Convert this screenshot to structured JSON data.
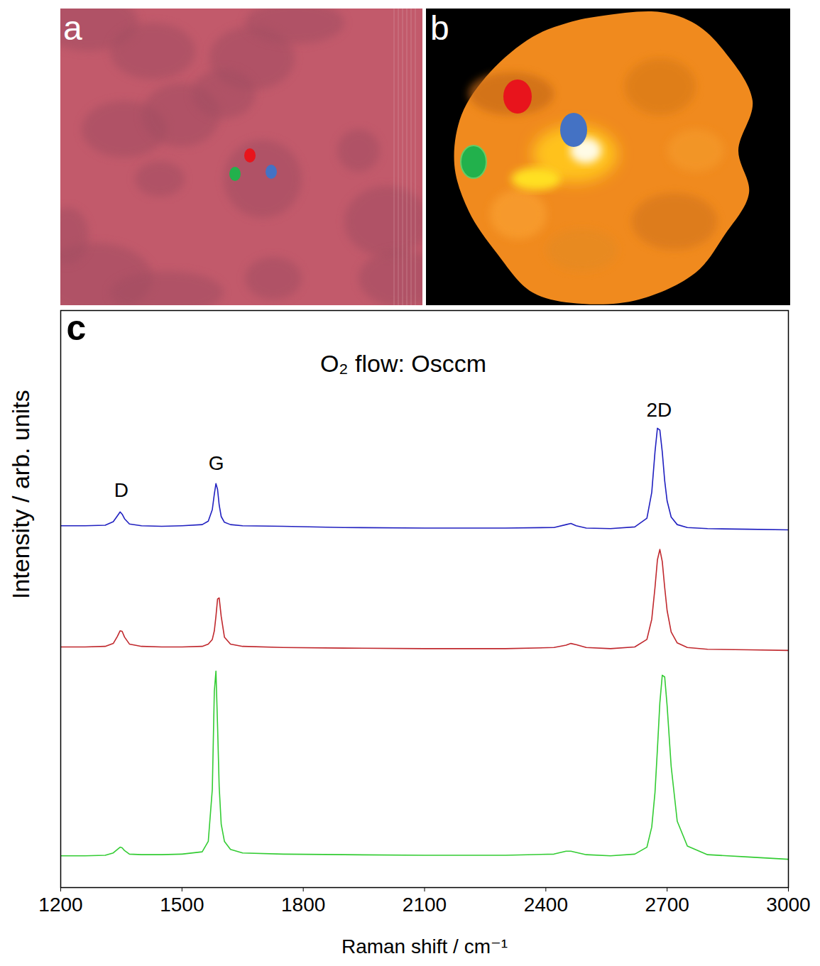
{
  "images": [
    {
      "panel": "a",
      "spots": [
        "#e8141c",
        "#22b14c",
        "#4472c4"
      ]
    },
    {
      "panel": "b",
      "spots": [
        "#e8141c",
        "#22b14c",
        "#4472c4"
      ]
    }
  ],
  "chart_data": {
    "type": "line",
    "panel": "c",
    "title": "O₂ flow: Osccm",
    "x_label": "Raman shift / cm⁻¹",
    "y_label": "Intensity / arb. units",
    "xlim": [
      1200,
      3000
    ],
    "xticks": [
      1200,
      1500,
      1800,
      2100,
      2400,
      2700,
      3000
    ],
    "ylim": [
      0,
      100
    ],
    "tick_labels": "x",
    "annotations": [
      {
        "text": "D",
        "x": 1350,
        "y": 68.8
      },
      {
        "text": "G",
        "x": 1585,
        "y": 73.5
      },
      {
        "text": "2D",
        "x": 2680,
        "y": 82.7
      }
    ],
    "x": [
      1200,
      1260,
      1310,
      1330,
      1340,
      1347,
      1352,
      1358,
      1370,
      1400,
      1450,
      1500,
      1550,
      1565,
      1575,
      1580,
      1584,
      1588,
      1592,
      1597,
      1605,
      1620,
      1650,
      1750,
      1900,
      2100,
      2300,
      2420,
      2450,
      2462,
      2475,
      2500,
      2560,
      2620,
      2650,
      2662,
      2670,
      2676,
      2682,
      2688,
      2694,
      2700,
      2710,
      2725,
      2750,
      2800,
      2900,
      3000
    ],
    "series": [
      {
        "color": "#2020c0",
        "values": [
          62.7,
          62.7,
          62.8,
          63.4,
          64.4,
          65.1,
          64.7,
          63.9,
          63.0,
          62.7,
          62.6,
          62.7,
          62.9,
          63.5,
          65.5,
          68.2,
          70.0,
          69.0,
          66.3,
          64.3,
          63.3,
          62.9,
          62.7,
          62.6,
          62.4,
          62.3,
          62.3,
          62.4,
          62.9,
          63.1,
          62.7,
          62.3,
          62.2,
          62.5,
          64.0,
          68.5,
          75.5,
          79.6,
          79.3,
          75.5,
          70.5,
          67.0,
          64.2,
          62.9,
          62.4,
          62.2,
          62.1,
          62.0
        ]
      },
      {
        "color": "#c0282d",
        "values": [
          41.7,
          41.7,
          41.8,
          42.3,
          43.5,
          44.5,
          44.4,
          43.4,
          42.2,
          41.8,
          41.7,
          41.7,
          41.8,
          42.2,
          43.0,
          44.5,
          47.0,
          50.0,
          50.2,
          47.0,
          43.4,
          42.2,
          41.8,
          41.6,
          41.5,
          41.4,
          41.4,
          41.6,
          42.0,
          42.3,
          42.1,
          41.6,
          41.4,
          41.7,
          43.0,
          46.5,
          52.0,
          56.8,
          58.6,
          56.5,
          52.0,
          48.0,
          44.3,
          42.4,
          41.6,
          41.3,
          41.2,
          41.1
        ]
      },
      {
        "color": "#33cc33",
        "values": [
          5.5,
          5.5,
          5.6,
          6.0,
          6.6,
          7.0,
          6.9,
          6.4,
          5.8,
          5.7,
          5.7,
          5.8,
          6.2,
          8.0,
          17.0,
          34.0,
          37.5,
          28.0,
          17.5,
          11.0,
          8.0,
          6.6,
          6.0,
          5.8,
          5.7,
          5.6,
          5.6,
          5.8,
          6.3,
          6.3,
          6.1,
          5.7,
          5.5,
          5.8,
          7.0,
          10.5,
          16.5,
          24.0,
          32.0,
          36.8,
          36.5,
          31.5,
          21.0,
          11.5,
          7.2,
          5.7,
          5.3,
          4.9
        ]
      }
    ]
  }
}
